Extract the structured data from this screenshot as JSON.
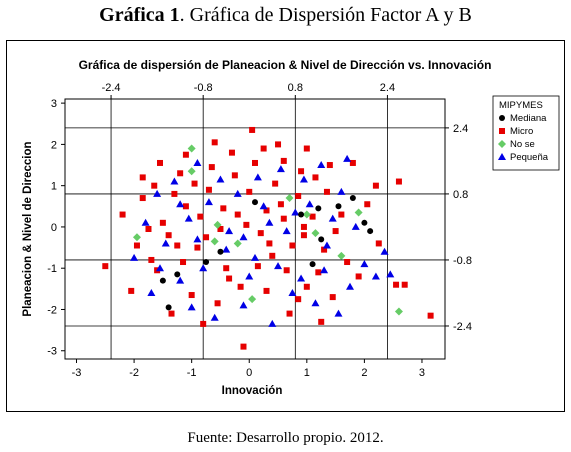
{
  "caption": {
    "label": "Gráfica 1",
    "text": ". Gráfica de Dispersión Factor A y B",
    "source": "Fuente: Desarrollo propio. 2012."
  },
  "colors": {
    "Mediana": "#000000",
    "Micro": "#e60000",
    "No se": "#66cc66",
    "Pequeña": "#0000e6"
  },
  "chart_data": {
    "type": "scatter",
    "title": "Gráfica de dispersión de Planeacion & Nivel de Dirección vs. Innovación",
    "xlabel": "Innovación",
    "ylabel": "Planeacion & Nivel de Direccion",
    "xlim": [
      -3.2,
      3.4
    ],
    "ylim": [
      -3.2,
      3.1
    ],
    "x_ticks": [
      "-3",
      "-2",
      "-1",
      "0",
      "1",
      "2",
      "3"
    ],
    "y_ticks": [
      "-3",
      "-2",
      "-1",
      "0",
      "1",
      "2",
      "3"
    ],
    "top_ticks": [
      "-2.4",
      "-0.8",
      "0.8",
      "2.4"
    ],
    "right_ticks": [
      "2.4",
      "0.8",
      "-0.8",
      "-2.4"
    ],
    "reference_lines": {
      "x": [
        -2.4,
        -0.8,
        0.8,
        2.4
      ],
      "y": [
        -2.4,
        -0.8,
        0.8,
        2.4
      ]
    },
    "legend": {
      "title": "MIPYMES",
      "position": "top-right",
      "entries": [
        "Mediana",
        "Micro",
        "No se",
        "Pequeña"
      ]
    },
    "series": [
      {
        "name": "Mediana",
        "marker": "circle",
        "points": [
          [
            1.8,
            0.7
          ],
          [
            1.55,
            0.5
          ],
          [
            1.2,
            0.45
          ],
          [
            2.1,
            -0.1
          ],
          [
            1.25,
            -0.3
          ],
          [
            -0.5,
            -0.6
          ],
          [
            -1.25,
            -1.15
          ],
          [
            -1.5,
            -1.3
          ],
          [
            -1.4,
            -1.95
          ],
          [
            0.9,
            0.3
          ],
          [
            1.1,
            -0.9
          ],
          [
            -0.75,
            -0.85
          ],
          [
            0.1,
            0.6
          ],
          [
            2.0,
            0.1
          ]
        ]
      },
      {
        "name": "Micro",
        "marker": "square",
        "points": [
          [
            -2.5,
            -0.95
          ],
          [
            -1.85,
            1.2
          ],
          [
            -1.55,
            1.55
          ],
          [
            -1.2,
            1.3
          ],
          [
            -1.1,
            0.5
          ],
          [
            -0.6,
            2.05
          ],
          [
            -0.3,
            1.8
          ],
          [
            0.05,
            2.35
          ],
          [
            0.25,
            1.9
          ],
          [
            0.5,
            2.0
          ],
          [
            1.0,
            1.9
          ],
          [
            1.4,
            1.5
          ],
          [
            1.8,
            1.55
          ],
          [
            2.2,
            1.0
          ],
          [
            2.6,
            1.1
          ],
          [
            -1.95,
            -0.45
          ],
          [
            -1.7,
            -0.8
          ],
          [
            -1.4,
            -0.2
          ],
          [
            -0.9,
            -0.5
          ],
          [
            -0.5,
            -0.05
          ],
          [
            -0.2,
            0.3
          ],
          [
            0.35,
            -0.4
          ],
          [
            0.6,
            0.2
          ],
          [
            0.95,
            -0.2
          ],
          [
            1.3,
            -0.55
          ],
          [
            1.7,
            -0.85
          ],
          [
            2.25,
            -0.4
          ],
          [
            2.55,
            -1.4
          ],
          [
            2.7,
            -1.4
          ],
          [
            3.15,
            -2.15
          ],
          [
            -0.1,
            -2.9
          ],
          [
            0.7,
            -2.1
          ],
          [
            1.25,
            -2.3
          ],
          [
            -1.35,
            -2.1
          ],
          [
            -0.8,
            -2.35
          ],
          [
            -1.1,
            1.75
          ],
          [
            -0.7,
            0.9
          ],
          [
            -0.35,
            -1.25
          ],
          [
            0.15,
            -0.95
          ],
          [
            0.45,
            1.05
          ],
          [
            0.85,
            0.75
          ],
          [
            1.1,
            0.25
          ],
          [
            1.5,
            -0.1
          ],
          [
            1.9,
            -1.2
          ],
          [
            -2.05,
            -1.55
          ],
          [
            -1.75,
            -0.05
          ],
          [
            -1.3,
            0.8
          ],
          [
            -0.95,
            1.05
          ],
          [
            -0.45,
            0.45
          ],
          [
            0.0,
            0.85
          ],
          [
            0.3,
            -1.55
          ],
          [
            0.65,
            -1.05
          ],
          [
            1.0,
            -1.45
          ],
          [
            1.45,
            -1.7
          ],
          [
            -2.2,
            0.3
          ],
          [
            -1.6,
            -1.05
          ],
          [
            -1.0,
            -1.65
          ],
          [
            -0.55,
            -1.85
          ],
          [
            -0.15,
            -1.45
          ],
          [
            0.2,
            -0.15
          ],
          [
            0.55,
            0.55
          ],
          [
            0.9,
            1.35
          ],
          [
            1.35,
            0.85
          ],
          [
            -1.85,
            0.7
          ],
          [
            -1.15,
            -0.85
          ],
          [
            -0.75,
            -0.25
          ],
          [
            -0.25,
            1.25
          ],
          [
            0.1,
            1.55
          ],
          [
            0.4,
            -0.7
          ],
          [
            0.75,
            -0.45
          ],
          [
            1.15,
            1.2
          ],
          [
            1.6,
            0.3
          ],
          [
            2.05,
            0.55
          ],
          [
            -1.5,
            0.1
          ],
          [
            -0.65,
            1.45
          ],
          [
            0.85,
            -1.75
          ],
          [
            -1.25,
            -0.45
          ],
          [
            -0.05,
            0.05
          ],
          [
            0.6,
            1.6
          ],
          [
            1.2,
            -1.1
          ],
          [
            -0.4,
            -1.0
          ],
          [
            0.3,
            0.4
          ],
          [
            -1.65,
            1.0
          ],
          [
            -0.85,
            0.25
          ],
          [
            0.95,
            0.0
          ]
        ]
      },
      {
        "name": "No se",
        "marker": "diamond",
        "points": [
          [
            -1.0,
            1.9
          ],
          [
            -1.0,
            1.35
          ],
          [
            -1.95,
            -0.25
          ],
          [
            -0.55,
            0.05
          ],
          [
            -0.6,
            -0.35
          ],
          [
            0.7,
            0.7
          ],
          [
            1.15,
            -0.15
          ],
          [
            1.6,
            -0.7
          ],
          [
            1.9,
            0.35
          ],
          [
            0.05,
            -1.75
          ],
          [
            2.6,
            -2.05
          ],
          [
            -0.2,
            -0.4
          ],
          [
            1.0,
            0.3
          ]
        ]
      },
      {
        "name": "Pequeña",
        "marker": "triangle",
        "points": [
          [
            -1.6,
            0.8
          ],
          [
            -1.3,
            1.1
          ],
          [
            -0.9,
            1.55
          ],
          [
            -0.5,
            1.15
          ],
          [
            0.15,
            1.2
          ],
          [
            0.55,
            1.4
          ],
          [
            0.95,
            1.15
          ],
          [
            1.25,
            1.5
          ],
          [
            1.7,
            1.65
          ],
          [
            -1.8,
            0.1
          ],
          [
            -1.45,
            -0.4
          ],
          [
            -1.05,
            0.2
          ],
          [
            -0.7,
            0.6
          ],
          [
            -0.35,
            -0.1
          ],
          [
            0.25,
            0.5
          ],
          [
            0.65,
            -0.1
          ],
          [
            1.05,
            0.55
          ],
          [
            1.45,
            0.2
          ],
          [
            1.85,
            0.0
          ],
          [
            2.35,
            -0.6
          ],
          [
            -2.0,
            -0.75
          ],
          [
            -1.55,
            -1.0
          ],
          [
            -1.2,
            -1.3
          ],
          [
            -0.8,
            -1.0
          ],
          [
            -0.4,
            -0.55
          ],
          [
            0.1,
            -0.75
          ],
          [
            0.5,
            -0.95
          ],
          [
            0.9,
            -1.25
          ],
          [
            1.3,
            -1.05
          ],
          [
            1.75,
            -1.45
          ],
          [
            2.2,
            -1.2
          ],
          [
            2.45,
            -1.15
          ],
          [
            -1.0,
            -1.95
          ],
          [
            -0.6,
            -2.2
          ],
          [
            -0.1,
            -1.9
          ],
          [
            0.4,
            -2.35
          ],
          [
            0.75,
            -1.6
          ],
          [
            1.15,
            -1.85
          ],
          [
            1.55,
            -2.1
          ],
          [
            -1.2,
            0.55
          ],
          [
            -0.2,
            0.8
          ],
          [
            0.35,
            0.1
          ],
          [
            0.8,
            0.35
          ],
          [
            1.6,
            0.85
          ],
          [
            -0.9,
            -0.3
          ],
          [
            -0.1,
            -0.25
          ],
          [
            1.35,
            -0.45
          ],
          [
            -1.7,
            -1.6
          ],
          [
            0.0,
            -1.2
          ],
          [
            2.0,
            -0.9
          ]
        ]
      }
    ]
  }
}
